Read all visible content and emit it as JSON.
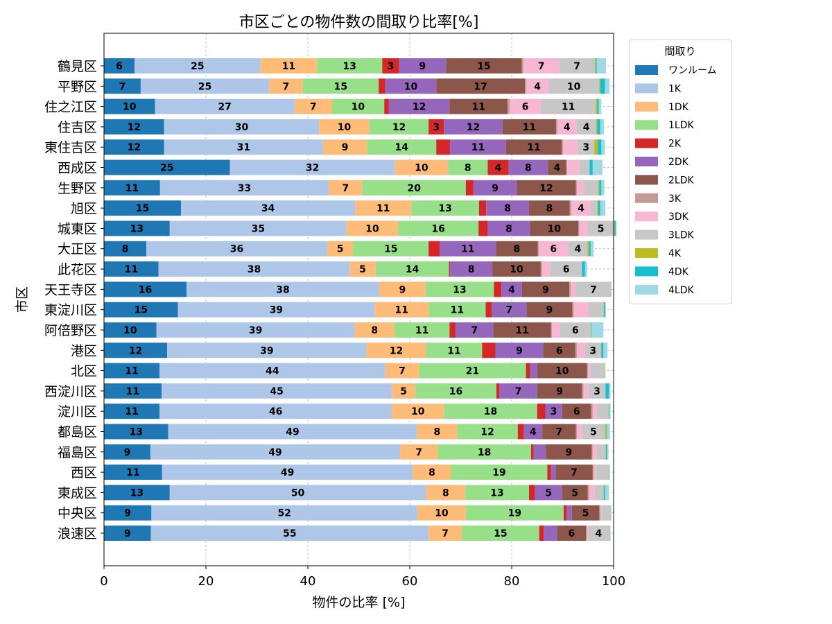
{
  "chart_data": {
    "type": "bar",
    "orientation": "horizontal",
    "stacked": true,
    "title": "市区ごとの物件数の間取り比率[%]",
    "xlabel": "物件の比率 [%]",
    "ylabel": "市区",
    "xlim": [
      0,
      100
    ],
    "xticks": [
      0,
      20,
      40,
      60,
      80,
      100
    ],
    "grid": true,
    "legend_title": "間取り",
    "legend_position": "upper right, outside plot",
    "categories": [
      "鶴見区",
      "平野区",
      "住之江区",
      "住吉区",
      "東住吉区",
      "西成区",
      "生野区",
      "旭区",
      "城東区",
      "大正区",
      "此花区",
      "天王寺区",
      "東淀川区",
      "阿倍野区",
      "港区",
      "北区",
      "西淀川区",
      "淀川区",
      "都島区",
      "福島区",
      "西区",
      "東成区",
      "中央区",
      "浪速区"
    ],
    "series": [
      {
        "name": "ワンルーム",
        "color": "#1f77b4",
        "values": [
          6.0,
          7.2,
          10.0,
          11.8,
          11.8,
          24.7,
          11.0,
          15.1,
          12.9,
          8.3,
          10.7,
          16.2,
          14.5,
          10.3,
          12.4,
          10.9,
          11.3,
          10.9,
          12.6,
          9.1,
          11.4,
          12.9,
          9.3,
          9.2
        ]
      },
      {
        "name": "1K",
        "color": "#aec7e8",
        "values": [
          24.7,
          25.2,
          27.4,
          30.4,
          31.2,
          32.4,
          33.1,
          34.2,
          34.7,
          35.5,
          37.5,
          37.8,
          38.6,
          38.9,
          39.1,
          44.3,
          45.2,
          45.6,
          48.8,
          49.0,
          49.2,
          50.3,
          52.2,
          54.5
        ]
      },
      {
        "name": "1DK",
        "color": "#ffbb78",
        "values": [
          11.1,
          6.6,
          7.3,
          9.9,
          8.6,
          10.4,
          6.6,
          11.0,
          10.1,
          5.1,
          5.1,
          9.1,
          10.6,
          7.8,
          11.7,
          6.6,
          4.6,
          10.2,
          7.9,
          7.4,
          7.5,
          7.7,
          9.5,
          6.5
        ]
      },
      {
        "name": "1LDK",
        "color": "#98df8a",
        "values": [
          12.8,
          14.9,
          10.3,
          11.6,
          13.6,
          7.8,
          20.3,
          13.3,
          15.8,
          14.8,
          14.4,
          13.4,
          11.2,
          10.8,
          11.0,
          21.0,
          15.9,
          18.3,
          11.9,
          18.3,
          18.9,
          12.5,
          19.2,
          15.2
        ]
      },
      {
        "name": "2K",
        "color": "#d62728",
        "values": [
          3.3,
          1.3,
          0.9,
          3.0,
          2.7,
          4.1,
          1.5,
          1.4,
          1.8,
          2.2,
          0.2,
          1.5,
          1.2,
          1.2,
          2.6,
          0.8,
          0.6,
          1.6,
          1.2,
          0.5,
          0.7,
          1.2,
          0.6,
          0.9
        ]
      },
      {
        "name": "2DK",
        "color": "#9467bd",
        "values": [
          9.2,
          10.0,
          11.9,
          11.5,
          11.0,
          7.7,
          8.5,
          8.4,
          8.3,
          11.0,
          8.3,
          4.0,
          6.8,
          7.4,
          9.4,
          1.4,
          7.4,
          3.3,
          3.6,
          2.4,
          0.9,
          5.3,
          1.0,
          2.6
        ]
      },
      {
        "name": "2LDK",
        "color": "#8c564b",
        "values": [
          14.9,
          17.4,
          11.4,
          10.5,
          10.9,
          3.6,
          11.6,
          8.0,
          9.5,
          8.2,
          9.5,
          9.3,
          9.0,
          11.3,
          6.3,
          9.8,
          8.8,
          5.7,
          6.6,
          9.0,
          7.3,
          5.0,
          5.4,
          5.7
        ]
      },
      {
        "name": "3K",
        "color": "#c49c94",
        "values": [
          0.3,
          0.3,
          0.4,
          0.3,
          0.3,
          0.2,
          0.2,
          0.3,
          0.2,
          0.2,
          0.3,
          0.3,
          0.3,
          0.2,
          0.3,
          0.2,
          0.3,
          0.3,
          0.2,
          0.2,
          0.2,
          0.3,
          0.2,
          0.2
        ]
      },
      {
        "name": "3DK",
        "color": "#f7b6d2",
        "values": [
          7.0,
          4.3,
          6.1,
          3.7,
          2.9,
          2.4,
          1.4,
          3.8,
          1.6,
          5.8,
          1.6,
          0.9,
          2.9,
          1.6,
          1.6,
          0.4,
          1.0,
          0.8,
          1.0,
          0.8,
          0.4,
          1.1,
          0.2,
          0.2
        ]
      },
      {
        "name": "3LDK",
        "color": "#c7c7c7",
        "values": [
          7.0,
          10.0,
          10.8,
          3.9,
          3.2,
          2.0,
          2.8,
          1.3,
          5.2,
          3.8,
          6.2,
          7.1,
          2.9,
          6.0,
          3.1,
          2.8,
          3.3,
          2.3,
          4.5,
          1.7,
          2.5,
          1.7,
          1.9,
          4.1
        ]
      },
      {
        "name": "4K",
        "color": "#bcbd22",
        "values": [
          0.2,
          0.2,
          0.3,
          0.2,
          0.7,
          0.0,
          0.2,
          0.2,
          0.1,
          0.3,
          0.0,
          0.0,
          0.1,
          0.1,
          0.1,
          0.1,
          0.0,
          0.1,
          0.3,
          0.1,
          0.1,
          0.1,
          0.0,
          0.1
        ]
      },
      {
        "name": "4DK",
        "color": "#17becf",
        "values": [
          0.2,
          0.9,
          0.3,
          0.6,
          0.7,
          0.6,
          0.4,
          0.4,
          0.2,
          0.3,
          0.6,
          0.0,
          0.2,
          0.1,
          0.4,
          0.0,
          0.7,
          0.1,
          0.1,
          0.2,
          0.0,
          0.2,
          0.0,
          0.0
        ]
      },
      {
        "name": "4LDK",
        "color": "#9edae5",
        "values": [
          1.8,
          0.9,
          0.5,
          0.7,
          0.7,
          1.9,
          0.6,
          1.0,
          0.2,
          0.6,
          0.4,
          0.0,
          0.2,
          2.3,
          0.8,
          0.1,
          0.3,
          0.2,
          0.6,
          0.3,
          0.2,
          0.8,
          0.1,
          0.2
        ]
      }
    ]
  }
}
